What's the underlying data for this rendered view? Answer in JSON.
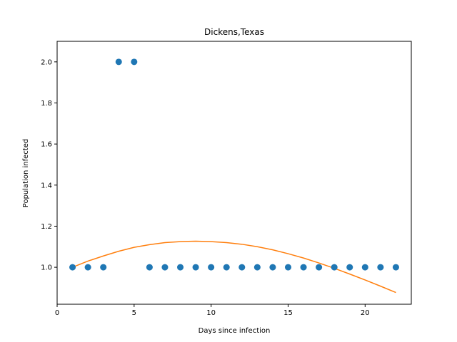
{
  "chart_data": {
    "type": "scatter",
    "title": "Dickens,Texas",
    "xlabel": "Days since infection",
    "ylabel": "Population infected",
    "xlim": [
      0,
      23
    ],
    "ylim": [
      0.82,
      2.1
    ],
    "xticks": [
      0,
      5,
      10,
      15,
      20
    ],
    "yticks": [
      1.0,
      1.2,
      1.4,
      1.6,
      1.8,
      2.0
    ],
    "grid": false,
    "series": [
      {
        "type": "scatter",
        "color": "#1f77b4",
        "x": [
          1,
          2,
          3,
          4,
          5,
          6,
          7,
          8,
          9,
          10,
          11,
          12,
          13,
          14,
          15,
          16,
          17,
          18,
          19,
          20,
          21,
          22
        ],
        "y": [
          1,
          1,
          1,
          2,
          2,
          1,
          1,
          1,
          1,
          1,
          1,
          1,
          1,
          1,
          1,
          1,
          1,
          1,
          1,
          1,
          1,
          1
        ]
      },
      {
        "type": "line",
        "color": "#ff7f0e",
        "x": [
          1,
          2,
          3,
          4,
          5,
          6,
          7,
          8,
          9,
          10,
          11,
          12,
          13,
          14,
          15,
          16,
          17,
          18,
          19,
          20,
          21,
          22
        ],
        "y": [
          1.0,
          1.03,
          1.055,
          1.078,
          1.097,
          1.11,
          1.12,
          1.125,
          1.127,
          1.125,
          1.12,
          1.112,
          1.1,
          1.085,
          1.066,
          1.045,
          1.021,
          0.995,
          0.967,
          0.938,
          0.908,
          0.877
        ]
      }
    ]
  }
}
